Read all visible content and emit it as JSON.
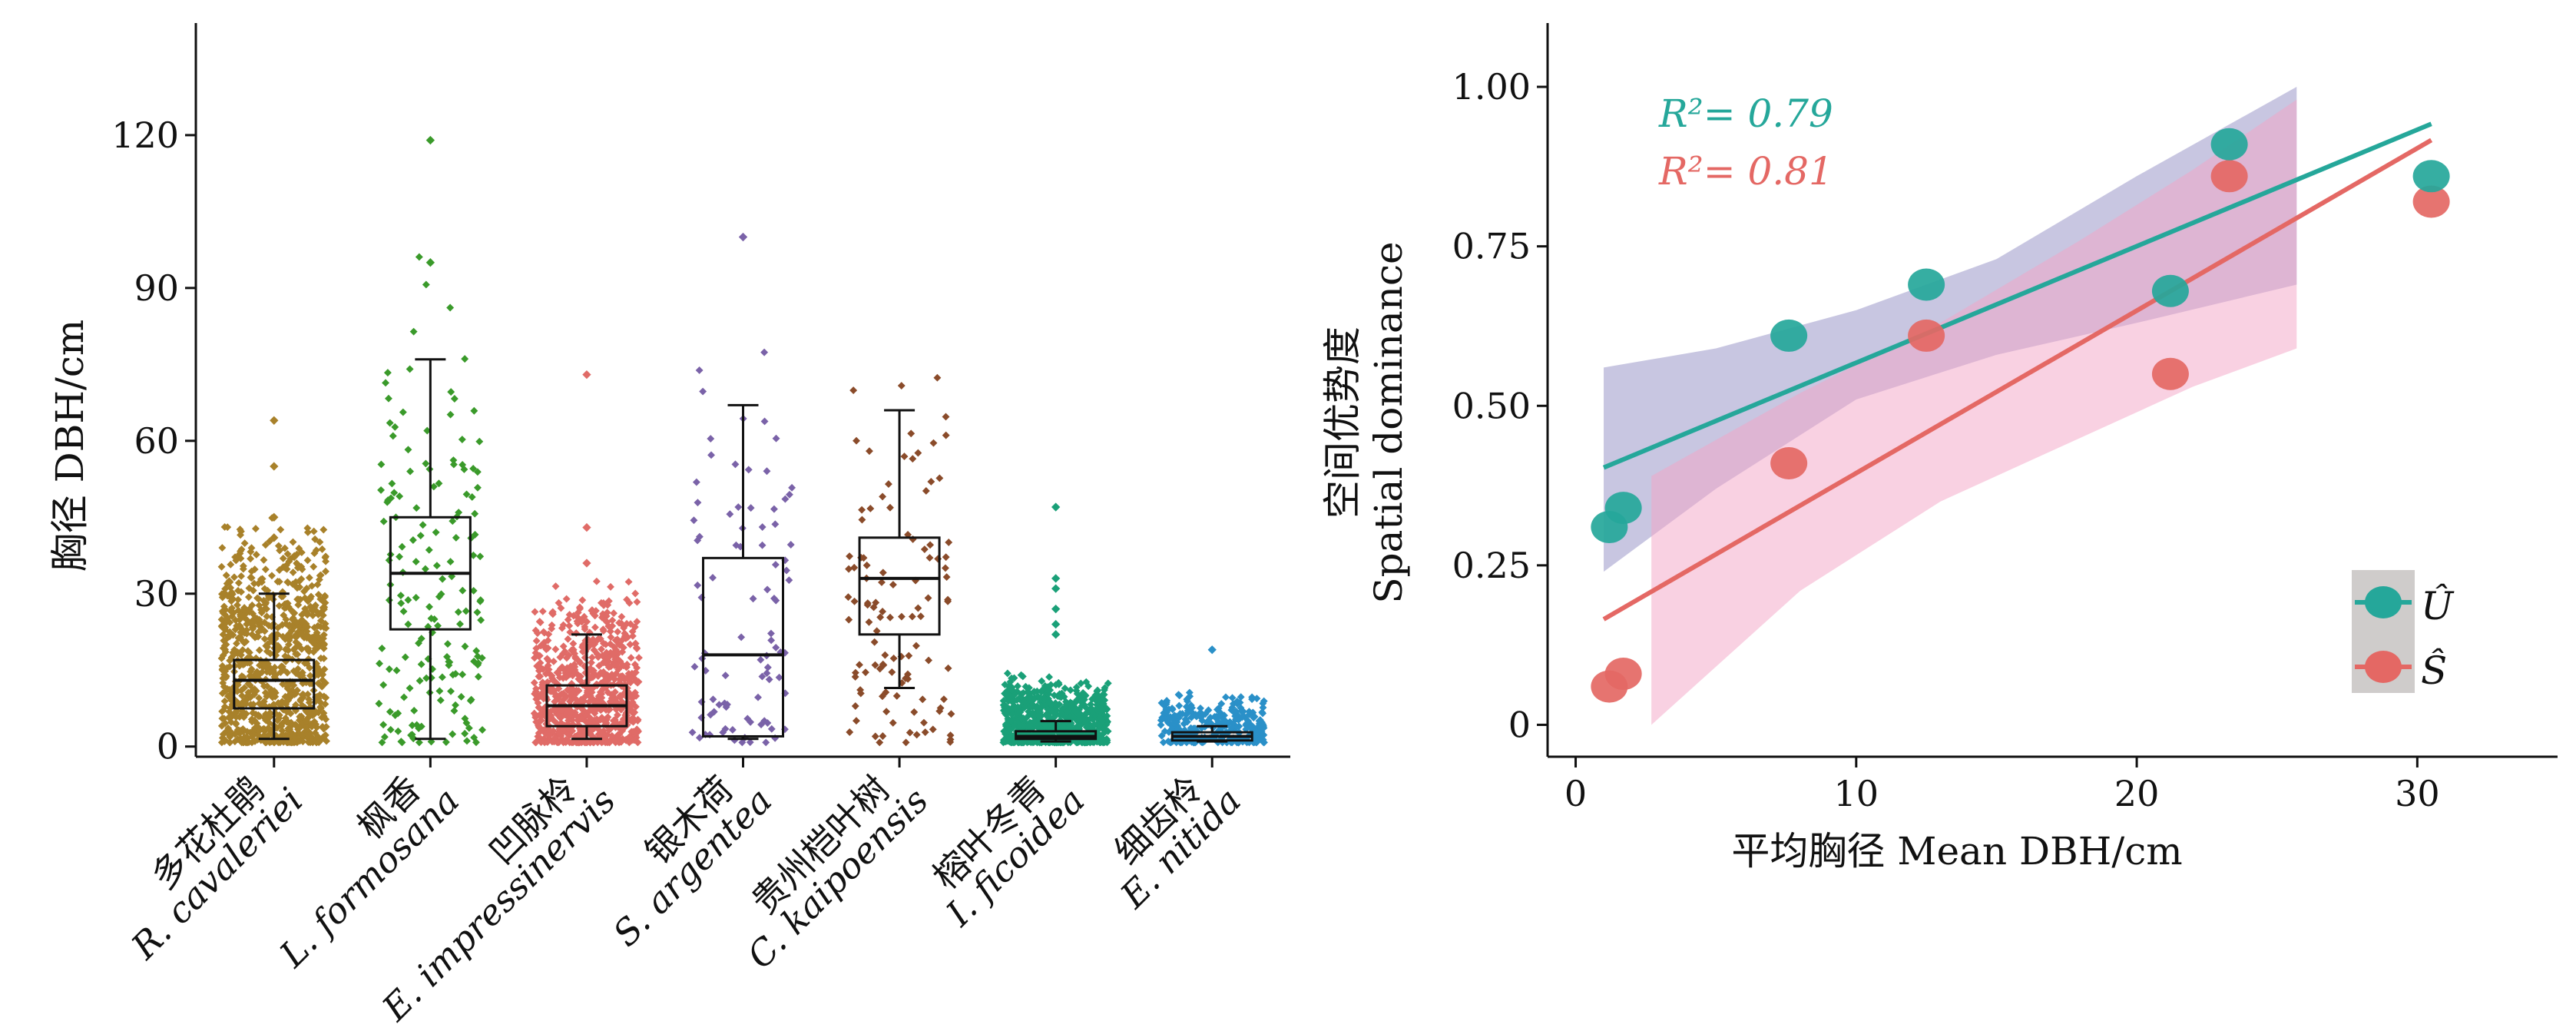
{
  "chart_data": [
    {
      "type": "boxplot",
      "ylabel": "胸径 DBH/cm",
      "ylim": [
        -2,
        142
      ],
      "yticks": [
        0,
        30,
        60,
        90,
        120
      ],
      "categories": [
        {
          "zh": "多花杜鹃",
          "en": "R. cavaleriei",
          "color": "#a8812a",
          "stats": {
            "min": 1.5,
            "q1": 7.5,
            "median": 13,
            "q3": 17,
            "max": 30
          },
          "points": {
            "n": 900,
            "spread": 36
          },
          "outliers": [
            41,
            45,
            55,
            64
          ]
        },
        {
          "zh": "枫香",
          "en": "L. formosana",
          "color": "#3a9a2a",
          "stats": {
            "min": 1.5,
            "q1": 23,
            "median": 34,
            "q3": 45,
            "max": 76
          },
          "points": {
            "n": 170,
            "spread": 78
          },
          "outliers": [
            95,
            119
          ]
        },
        {
          "zh": "凹脉柃",
          "en": "E. impressinervis",
          "color": "#e06b67",
          "stats": {
            "min": 1.5,
            "q1": 4,
            "median": 8,
            "q3": 12,
            "max": 22
          },
          "points": {
            "n": 800,
            "spread": 25
          },
          "outliers": [
            36,
            43,
            73
          ]
        },
        {
          "zh": "银木荷",
          "en": "S. argentea",
          "color": "#7a62a8",
          "stats": {
            "min": 1.5,
            "q1": 2,
            "median": 18,
            "q3": 37,
            "max": 67
          },
          "points": {
            "n": 90,
            "spread": 66
          },
          "outliers": [
            100
          ]
        },
        {
          "zh": "贵州桤叶树",
          "en": "C. kaipoensis",
          "color": "#8a4b2a",
          "stats": {
            "min": 11.5,
            "q1": 22,
            "median": 33,
            "q3": 41,
            "max": 66
          },
          "points": {
            "n": 110,
            "spread": 66
          },
          "outliers": []
        },
        {
          "zh": "榕叶冬青",
          "en": "I. ficoidea",
          "color": "#1aa078",
          "stats": {
            "min": 1,
            "q1": 1.5,
            "median": 2,
            "q3": 3,
            "max": 5
          },
          "points": {
            "n": 700,
            "spread": 11
          },
          "outliers": [
            22,
            24,
            27,
            31,
            33,
            47
          ]
        },
        {
          "zh": "细齿柃",
          "en": "E. nitida",
          "color": "#2a90c8",
          "stats": {
            "min": 1,
            "q1": 1.2,
            "median": 2,
            "q3": 2.8,
            "max": 4
          },
          "points": {
            "n": 300,
            "spread": 8
          },
          "outliers": [
            19
          ]
        }
      ]
    },
    {
      "type": "scatter",
      "xlabel": "平均胸径 Mean DBH/cm",
      "ylabel_zh": "空间优势度",
      "ylabel_en": "Spatial dominance",
      "xlim": [
        -1,
        35
      ],
      "ylim": [
        -0.05,
        1.1
      ],
      "xticks": [
        0,
        10,
        20,
        30
      ],
      "yticks": [
        {
          "v": 0,
          "label": "0"
        },
        {
          "v": 0.25,
          "label": "0.25"
        },
        {
          "v": 0.5,
          "label": "0.50"
        },
        {
          "v": 0.75,
          "label": "0.75"
        },
        {
          "v": 1.0,
          "label": "1.00"
        }
      ],
      "series": [
        {
          "name": "Û",
          "color": "#25a79a",
          "r2": "R²= 0.79",
          "points": [
            [
              1.2,
              0.31
            ],
            [
              1.7,
              0.34
            ],
            [
              7.6,
              0.61
            ],
            [
              12.5,
              0.69
            ],
            [
              21.2,
              0.68
            ],
            [
              23.3,
              0.91
            ],
            [
              30.5,
              0.86
            ]
          ],
          "fit": {
            "x0": 1.0,
            "x1": 30.5,
            "intercept": 0.385,
            "slope": 0.01826
          },
          "band": {
            "color": "#9a98c8",
            "x0": 1.0,
            "x1": 25.7,
            "upper": [
              [
                1.0,
                0.56
              ],
              [
                5,
                0.59
              ],
              [
                10,
                0.65
              ],
              [
                15,
                0.73
              ],
              [
                20,
                0.86
              ],
              [
                25.7,
                1.0
              ]
            ],
            "lower": [
              [
                1.0,
                0.24
              ],
              [
                5,
                0.37
              ],
              [
                10,
                0.51
              ],
              [
                15,
                0.58
              ],
              [
                20,
                0.63
              ],
              [
                25.7,
                0.69
              ]
            ]
          }
        },
        {
          "name": "Ŝ",
          "color": "#e46864",
          "r2": "R²= 0.81",
          "points": [
            [
              1.2,
              0.06
            ],
            [
              1.7,
              0.08
            ],
            [
              7.6,
              0.41
            ],
            [
              12.5,
              0.61
            ],
            [
              21.2,
              0.55
            ],
            [
              23.3,
              0.86
            ],
            [
              30.5,
              0.82
            ]
          ],
          "fit": {
            "x0": 1.0,
            "x1": 30.5,
            "intercept": 0.14,
            "slope": 0.02546
          },
          "band": {
            "color": "#f4a3c6",
            "x0": 2.7,
            "x1": 25.7,
            "upper": [
              [
                2.7,
                0.39
              ],
              [
                8,
                0.52
              ],
              [
                13,
                0.63
              ],
              [
                18,
                0.76
              ],
              [
                22,
                0.87
              ],
              [
                25.7,
                0.98
              ]
            ],
            "lower": [
              [
                2.7,
                0.0
              ],
              [
                8,
                0.21
              ],
              [
                13,
                0.35
              ],
              [
                18,
                0.45
              ],
              [
                22,
                0.53
              ],
              [
                25.7,
                0.59
              ]
            ]
          }
        }
      ],
      "legend": {
        "placement": "lower-right",
        "entries": [
          "Û",
          "Ŝ"
        ]
      }
    }
  ]
}
